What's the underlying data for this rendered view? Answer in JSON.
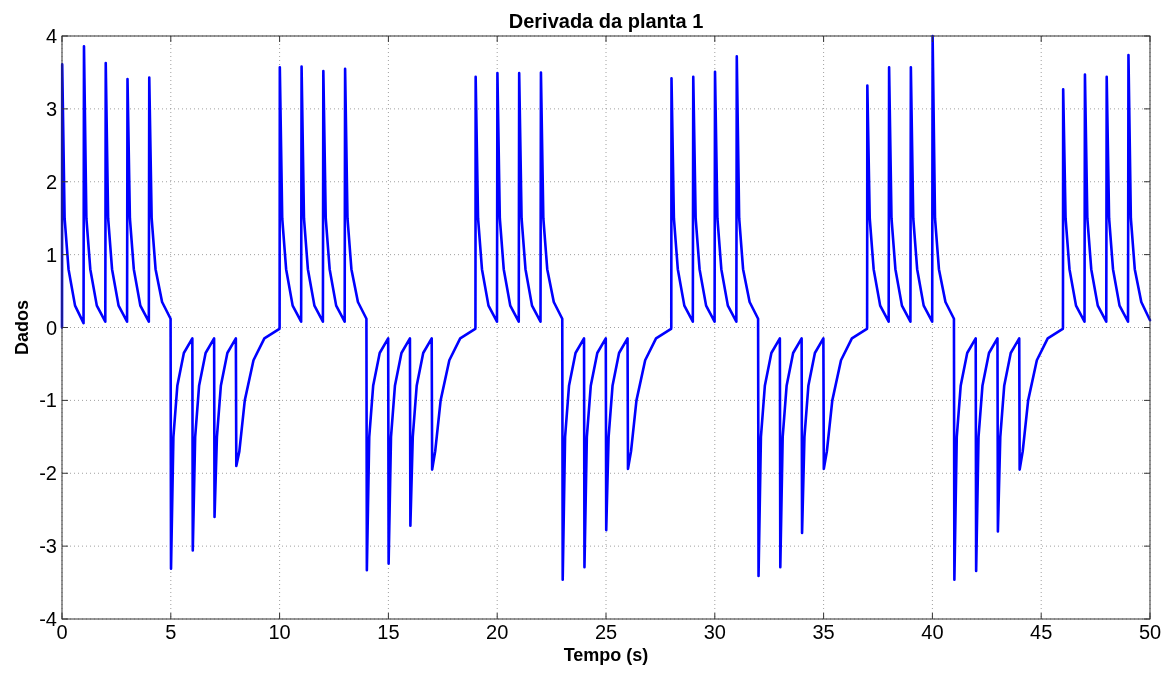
{
  "chart_data": {
    "type": "line",
    "title": "Derivada da planta 1",
    "xlabel": "Tempo (s)",
    "ylabel": "Dados",
    "xlim": [
      0,
      50
    ],
    "ylim": [
      -4,
      4
    ],
    "xticks": [
      0,
      5,
      10,
      15,
      20,
      25,
      30,
      35,
      40,
      45,
      50
    ],
    "yticks": [
      -4,
      -3,
      -2,
      -1,
      0,
      1,
      2,
      3,
      4
    ],
    "grid": true,
    "line_style": "solid",
    "series": [
      {
        "color": "#0000ff",
        "x": [
          0,
          0.01,
          0.12,
          0.3,
          0.6,
          0.99,
          1.01,
          1.12,
          1.3,
          1.6,
          1.99,
          2.01,
          2.12,
          2.3,
          2.6,
          2.99,
          3.01,
          3.12,
          3.3,
          3.6,
          3.99,
          4.01,
          4.12,
          4.3,
          4.6,
          4.99,
          5.01,
          5.12,
          5.3,
          5.6,
          5.99,
          6.01,
          6.12,
          6.3,
          6.6,
          6.99,
          7.01,
          7.12,
          7.3,
          7.6,
          7.99,
          8.01,
          8.15,
          8.4,
          8.8,
          9.3,
          9.99,
          10,
          10.01,
          10.12,
          10.3,
          10.6,
          10.99,
          11.01,
          11.12,
          11.3,
          11.6,
          11.99,
          12.01,
          12.12,
          12.3,
          12.6,
          12.99,
          13.01,
          13.12,
          13.3,
          13.6,
          13.99,
          14.01,
          14.12,
          14.3,
          14.6,
          14.99,
          15.01,
          15.12,
          15.3,
          15.6,
          15.99,
          16.01,
          16.12,
          16.3,
          16.6,
          16.99,
          17.01,
          17.15,
          17.4,
          17.8,
          18.3,
          18.99,
          19,
          19.01,
          19.12,
          19.3,
          19.6,
          19.99,
          20.01,
          20.12,
          20.3,
          20.6,
          20.99,
          21.01,
          21.12,
          21.3,
          21.6,
          21.99,
          22.01,
          22.12,
          22.3,
          22.6,
          22.99,
          23.01,
          23.12,
          23.3,
          23.6,
          23.99,
          24.01,
          24.12,
          24.3,
          24.6,
          24.99,
          25.01,
          25.12,
          25.3,
          25.6,
          25.99,
          26.01,
          26.15,
          26.4,
          26.8,
          27.3,
          27.99,
          28,
          28.01,
          28.12,
          28.3,
          28.6,
          28.99,
          29.01,
          29.12,
          29.3,
          29.6,
          29.99,
          30.01,
          30.12,
          30.3,
          30.6,
          30.99,
          31.01,
          31.12,
          31.3,
          31.6,
          31.99,
          32.01,
          32.12,
          32.3,
          32.6,
          32.99,
          33.01,
          33.12,
          33.3,
          33.6,
          33.99,
          34.01,
          34.12,
          34.3,
          34.6,
          34.99,
          35.01,
          35.15,
          35.4,
          35.8,
          36.3,
          36.99,
          37,
          37.01,
          37.12,
          37.3,
          37.6,
          37.99,
          38.01,
          38.12,
          38.3,
          38.6,
          38.99,
          39.01,
          39.12,
          39.3,
          39.6,
          39.99,
          40.01,
          40.12,
          40.3,
          40.6,
          40.99,
          41.01,
          41.12,
          41.3,
          41.6,
          41.99,
          42.01,
          42.12,
          42.3,
          42.6,
          42.99,
          43.01,
          43.12,
          43.3,
          43.6,
          43.99,
          44.01,
          44.15,
          44.4,
          44.8,
          45.3,
          45.99,
          46,
          46.01,
          46.12,
          46.3,
          46.6,
          46.99,
          47.01,
          47.12,
          47.3,
          47.6,
          47.99,
          48.01,
          48.12,
          48.3,
          48.6,
          48.99,
          49.01,
          49.12,
          49.3,
          49.6,
          50
        ],
        "values": [
          0,
          3.61,
          1.5,
          0.8,
          0.3,
          0.06,
          3.86,
          1.5,
          0.8,
          0.3,
          0.08,
          3.63,
          1.5,
          0.8,
          0.3,
          0.08,
          3.41,
          1.5,
          0.8,
          0.3,
          0.08,
          3.43,
          1.5,
          0.8,
          0.35,
          0.12,
          -3.31,
          -1.5,
          -0.8,
          -0.35,
          -0.15,
          -3.06,
          -1.5,
          -0.8,
          -0.35,
          -0.15,
          -2.6,
          -1.5,
          -0.8,
          -0.35,
          -0.15,
          -1.9,
          -1.7,
          -1,
          -0.45,
          -0.15,
          -0.02,
          0,
          3.57,
          1.5,
          0.8,
          0.3,
          0.08,
          3.58,
          1.5,
          0.8,
          0.3,
          0.08,
          3.52,
          1.5,
          0.8,
          0.3,
          0.08,
          3.55,
          1.5,
          0.8,
          0.35,
          0.12,
          -3.33,
          -1.5,
          -0.8,
          -0.35,
          -0.15,
          -3.24,
          -1.5,
          -0.8,
          -0.35,
          -0.15,
          -2.72,
          -1.5,
          -0.8,
          -0.35,
          -0.15,
          -1.95,
          -1.7,
          -1,
          -0.45,
          -0.15,
          -0.02,
          0,
          3.44,
          1.5,
          0.8,
          0.3,
          0.08,
          3.49,
          1.5,
          0.8,
          0.3,
          0.08,
          3.49,
          1.5,
          0.8,
          0.3,
          0.08,
          3.5,
          1.5,
          0.8,
          0.35,
          0.12,
          -3.46,
          -1.5,
          -0.8,
          -0.35,
          -0.15,
          -3.29,
          -1.5,
          -0.8,
          -0.35,
          -0.15,
          -2.78,
          -1.5,
          -0.8,
          -0.35,
          -0.15,
          -1.94,
          -1.7,
          -1,
          -0.45,
          -0.15,
          -0.02,
          0,
          3.42,
          1.5,
          0.8,
          0.3,
          0.08,
          3.44,
          1.5,
          0.8,
          0.3,
          0.08,
          3.51,
          1.5,
          0.8,
          0.3,
          0.08,
          3.72,
          1.5,
          0.8,
          0.35,
          0.12,
          -3.41,
          -1.5,
          -0.8,
          -0.35,
          -0.15,
          -3.29,
          -1.5,
          -0.8,
          -0.35,
          -0.15,
          -2.82,
          -1.5,
          -0.8,
          -0.35,
          -0.15,
          -1.94,
          -1.7,
          -1,
          -0.45,
          -0.15,
          -0.02,
          0,
          3.32,
          1.5,
          0.8,
          0.3,
          0.08,
          3.57,
          1.5,
          0.8,
          0.3,
          0.08,
          3.57,
          1.5,
          0.8,
          0.3,
          0.08,
          4,
          1.5,
          0.8,
          0.35,
          0.12,
          -3.46,
          -1.5,
          -0.8,
          -0.35,
          -0.15,
          -3.34,
          -1.5,
          -0.8,
          -0.35,
          -0.15,
          -2.8,
          -1.5,
          -0.8,
          -0.35,
          -0.15,
          -1.95,
          -1.7,
          -1,
          -0.45,
          -0.15,
          -0.02,
          0,
          3.27,
          1.5,
          0.8,
          0.3,
          0.08,
          3.47,
          1.5,
          0.8,
          0.3,
          0.08,
          3.44,
          1.5,
          0.8,
          0.3,
          0.08,
          3.74,
          1.5,
          0.8,
          0.35,
          0.1
        ]
      }
    ]
  }
}
